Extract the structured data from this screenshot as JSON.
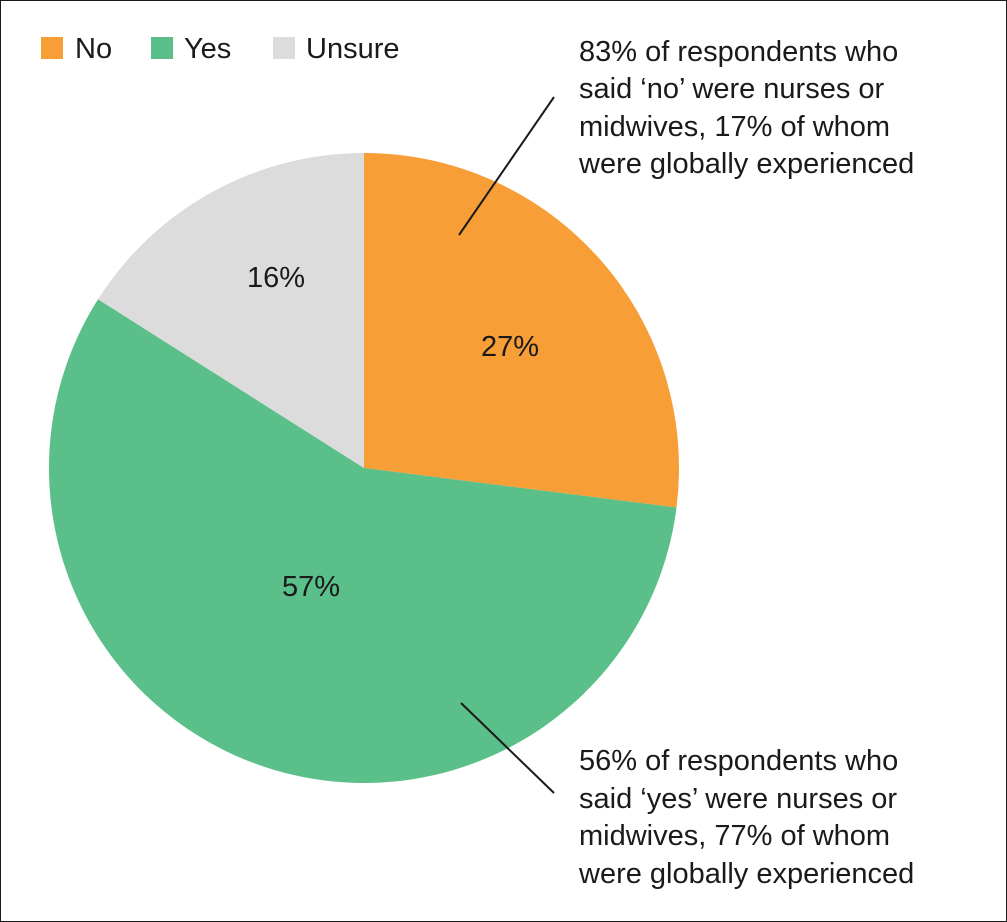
{
  "chart_data": {
    "type": "pie",
    "categories": [
      "No",
      "Yes",
      "Unsure"
    ],
    "values": [
      27,
      57,
      16
    ],
    "value_labels": [
      "27%",
      "57%",
      "16%"
    ],
    "colors": [
      "#f79e37",
      "#5abf88",
      "#dcdcdc"
    ],
    "legend": {
      "placement": "top-left",
      "entries": [
        {
          "label": "No",
          "color": "#f79e37"
        },
        {
          "label": "Yes",
          "color": "#5abf88"
        },
        {
          "label": "Unsure",
          "color": "#dcdcdc"
        }
      ]
    },
    "annotations": [
      {
        "target": "No",
        "lines": [
          "83% of respondents who",
          "said ‘no’ were nurses or",
          "midwives, 17% of whom",
          "were globally experienced"
        ]
      },
      {
        "target": "Yes",
        "lines": [
          "56% of respondents who",
          "said ‘yes’ were nurses or",
          "midwives, 77% of whom",
          "were globally experienced"
        ]
      }
    ]
  }
}
